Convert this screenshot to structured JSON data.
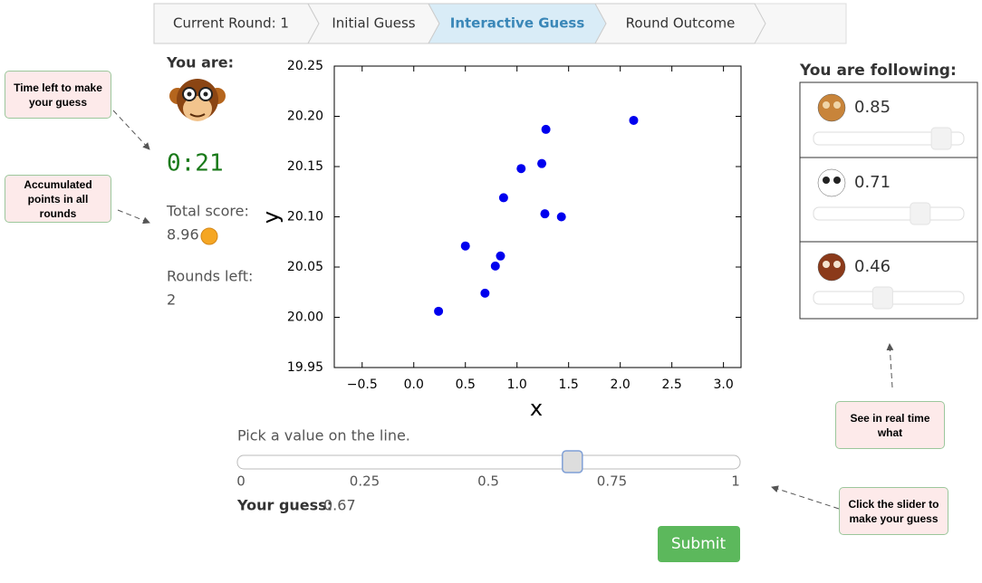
{
  "breadcrumb": {
    "steps": [
      "Current Round: 1",
      "Initial Guess",
      "Interactive Guess",
      "Round Outcome"
    ],
    "active": 2
  },
  "player": {
    "heading": "You are:",
    "timer": "0:21",
    "score_label": "Total score:",
    "score": "8.96",
    "rounds_label": "Rounds left:",
    "rounds": "2"
  },
  "chart_data": {
    "type": "scatter",
    "xlabel": "x",
    "ylabel": "y",
    "color": "#0000ee",
    "x": [
      0.24,
      0.5,
      0.69,
      0.79,
      0.84,
      0.87,
      1.04,
      1.24,
      1.28,
      1.27,
      1.43,
      2.13
    ],
    "values": [
      20.006,
      20.071,
      20.024,
      20.051,
      20.061,
      20.119,
      20.148,
      20.153,
      20.187,
      20.103,
      20.1,
      20.196
    ],
    "xlim": [
      -0.77,
      3.17
    ],
    "xticks": [
      {
        "value": -0.5,
        "label": "−0.5"
      },
      {
        "value": 0,
        "label": "0.0"
      },
      0.5,
      {
        "value": 1,
        "label": "1.0"
      },
      1.5,
      {
        "value": 2,
        "label": "2.0"
      },
      2.5,
      {
        "value": 3,
        "label": "3.0"
      }
    ],
    "ylim": [
      19.95,
      20.25
    ],
    "yticks": [
      19.95,
      {
        "value": 20,
        "label": "20.00"
      },
      20.05,
      {
        "value": 20.1,
        "label": "20.10"
      },
      20.15,
      {
        "value": 20.2,
        "label": "20.20"
      },
      20.25
    ]
  },
  "guess": {
    "prompt": "Pick a value on the line.",
    "min": 0,
    "max": 1,
    "ticks": [
      0,
      0.25,
      0.5,
      0.75,
      1
    ],
    "label": "Your guess:",
    "value": 0.67,
    "button": "Submit"
  },
  "following": {
    "title": "You are following:",
    "min": 0,
    "max": 1,
    "agents": [
      0.85,
      0.71,
      0.46
    ]
  },
  "notes": [
    "Time left to make your guess",
    "Accumulated points in all rounds",
    "See in real time what",
    "Click the slider to make your guess"
  ]
}
